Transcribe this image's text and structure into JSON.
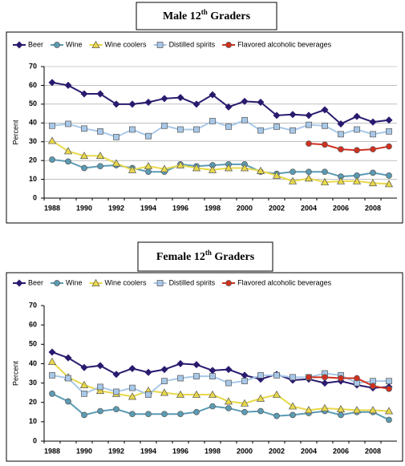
{
  "chart_data": [
    {
      "type": "line",
      "title": {
        "text": "Male 12",
        "sup": "th",
        "rest": " Graders"
      },
      "y_label": "Percent",
      "categories": [
        "1988",
        null,
        "1990",
        null,
        "1992",
        null,
        "1994",
        null,
        "1996",
        null,
        "1998",
        null,
        "2000",
        null,
        "2002",
        null,
        "2004",
        null,
        "2006",
        null,
        "2008",
        null
      ],
      "ylim": [
        0,
        70
      ],
      "yticks": [
        0,
        10,
        20,
        30,
        40,
        50,
        60,
        70
      ],
      "grid": true,
      "series": [
        {
          "name": "Beer",
          "color": "#2a1a6e",
          "marker": "diamond",
          "values": [
            61.5,
            60,
            55.5,
            55.5,
            50,
            50,
            51,
            53,
            53.5,
            50,
            55,
            48.5,
            51.5,
            51,
            44,
            44.5,
            44,
            47,
            39.5,
            43.5,
            40.5,
            41.5
          ]
        },
        {
          "name": "Wine",
          "color": "#5b9bb3",
          "marker": "circle",
          "values": [
            20.5,
            19.5,
            16,
            17,
            17.5,
            16,
            14,
            14,
            18,
            17,
            17.5,
            18,
            18,
            14,
            13,
            14,
            14,
            14,
            11.5,
            12,
            13.5,
            12
          ]
        },
        {
          "name": "Wine coolers",
          "color": "#e8d84a",
          "marker": "triangle",
          "values": [
            30.5,
            25,
            22.5,
            22.5,
            18.5,
            15,
            17,
            15.5,
            17.5,
            16,
            15,
            16,
            16,
            14.5,
            12,
            9,
            10.5,
            8.5,
            9,
            9,
            8,
            7.5
          ]
        },
        {
          "name": "Distilled spirits",
          "color": "#a8c8e8",
          "marker": "square",
          "values": [
            38.5,
            39.5,
            37,
            35.5,
            32.5,
            36.5,
            33,
            38.5,
            36.5,
            36.5,
            41,
            38,
            41.5,
            36,
            38,
            36,
            39,
            38.5,
            34,
            36.5,
            34,
            35.5
          ]
        },
        {
          "name": "Flavored alcoholic beverages",
          "color": "#d03020",
          "marker": "circle",
          "values": [
            null,
            null,
            null,
            null,
            null,
            null,
            null,
            null,
            null,
            null,
            null,
            null,
            null,
            null,
            null,
            null,
            29,
            28.5,
            26,
            25.5,
            26,
            27.5
          ]
        }
      ]
    },
    {
      "type": "line",
      "title": {
        "text": "Female 12",
        "sup": "th",
        "rest": " Graders"
      },
      "y_label": "Percent",
      "categories": [
        "1988",
        null,
        "1990",
        null,
        "1992",
        null,
        "1994",
        null,
        "1996",
        null,
        "1998",
        null,
        "2000",
        null,
        "2002",
        null,
        "2004",
        null,
        "2006",
        null,
        "2008",
        null
      ],
      "ylim": [
        0,
        70
      ],
      "yticks": [
        0,
        10,
        20,
        30,
        40,
        50,
        60,
        70
      ],
      "grid": false,
      "series": [
        {
          "name": "Beer",
          "color": "#2a1a6e",
          "marker": "diamond",
          "values": [
            46,
            43,
            38,
            39,
            34.5,
            37.5,
            35.5,
            37,
            40,
            39.5,
            36.5,
            37,
            34,
            32,
            34.5,
            31.5,
            32,
            30,
            31,
            29,
            27.5,
            28
          ]
        },
        {
          "name": "Wine",
          "color": "#5b9bb3",
          "marker": "circle",
          "values": [
            24.5,
            20.5,
            13.5,
            15.5,
            16.5,
            14,
            14,
            14,
            14,
            15,
            18,
            17,
            15,
            15.5,
            13,
            13.5,
            14.5,
            15.5,
            13.5,
            15,
            15,
            11
          ]
        },
        {
          "name": "Wine coolers",
          "color": "#e8d84a",
          "marker": "triangle",
          "values": [
            41,
            33,
            29,
            26,
            24.5,
            23,
            26,
            25,
            24,
            24,
            24,
            20.5,
            19.5,
            22,
            24,
            18,
            16,
            17,
            16.5,
            16,
            16,
            15.5
          ]
        },
        {
          "name": "Distilled spirits",
          "color": "#a8c8e8",
          "marker": "square",
          "values": [
            34,
            32.5,
            24.5,
            28,
            25.5,
            27.5,
            24,
            31,
            32.5,
            33.5,
            33.5,
            30,
            31,
            34,
            34,
            33,
            33,
            35,
            34,
            30,
            31,
            31
          ]
        },
        {
          "name": "Flavored alcoholic beverages",
          "color": "#d03020",
          "marker": "circle",
          "values": [
            null,
            null,
            null,
            null,
            null,
            null,
            null,
            null,
            null,
            null,
            null,
            null,
            null,
            null,
            null,
            null,
            33,
            33,
            32.5,
            32.5,
            28.5,
            27
          ]
        }
      ]
    }
  ]
}
